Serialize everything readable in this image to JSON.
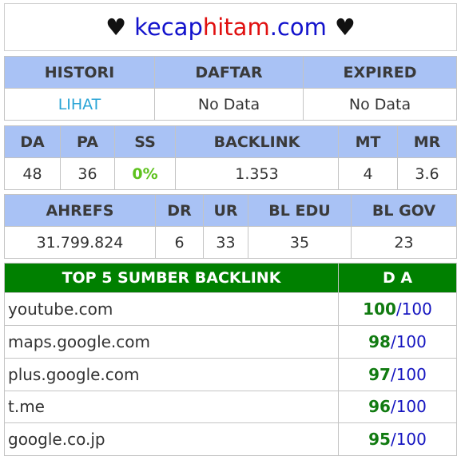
{
  "header": {
    "heart_left": "♥",
    "domain_part1": "kecap",
    "domain_part2": "hitam",
    "domain_part3": ".com",
    "heart_right": "♥"
  },
  "registration": {
    "headers": [
      "HISTORI",
      "DAFTAR",
      "EXPIRED"
    ],
    "histori_link": "LIHAT",
    "daftar_value": "No Data",
    "expired_value": "No Data"
  },
  "metrics": {
    "headers": [
      "DA",
      "PA",
      "SS",
      "BACKLINK",
      "MT",
      "MR"
    ],
    "values": [
      "48",
      "36",
      "0%",
      "1.353",
      "4",
      "3.6"
    ]
  },
  "ahrefs": {
    "headers": [
      "AHREFS",
      "DR",
      "UR",
      "BL EDU",
      "BL GOV"
    ],
    "values": [
      "31.799.824",
      "6",
      "33",
      "35",
      "23"
    ]
  },
  "top_sources": {
    "header_source": "TOP 5 SUMBER BACKLINK",
    "header_da": "D A",
    "max": "100",
    "rows": [
      {
        "domain": "youtube.com",
        "da": "100"
      },
      {
        "domain": "maps.google.com",
        "da": "98"
      },
      {
        "domain": "plus.google.com",
        "da": "97"
      },
      {
        "domain": "t.me",
        "da": "96"
      },
      {
        "domain": "google.co.jp",
        "da": "95"
      }
    ]
  }
}
